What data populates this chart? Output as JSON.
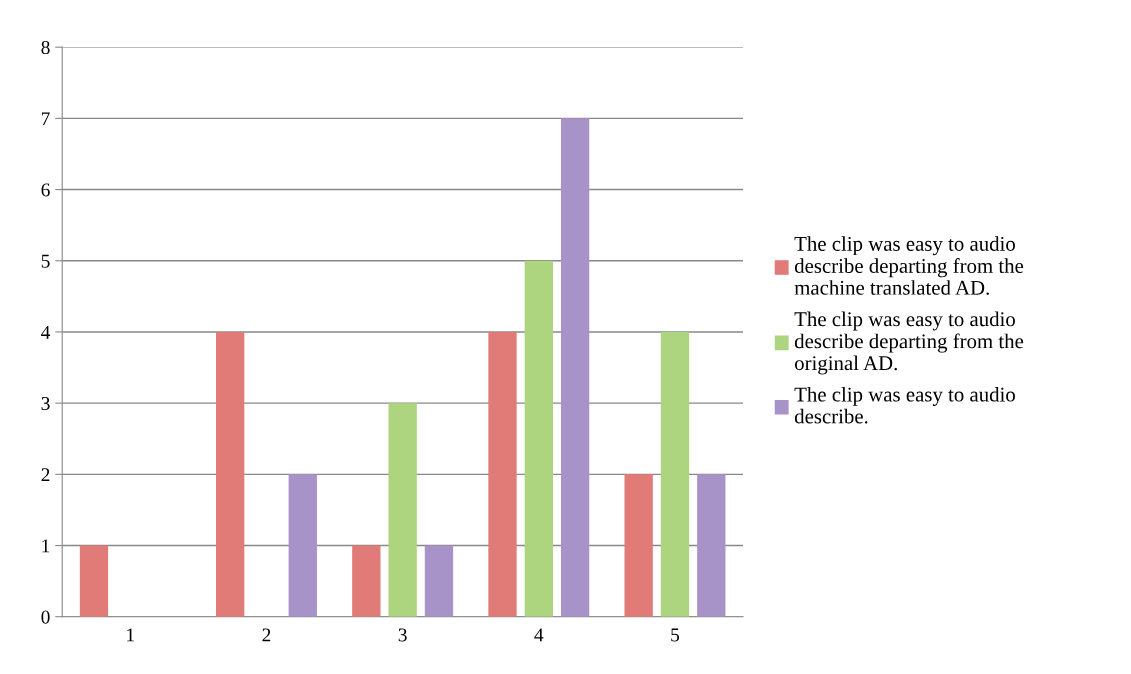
{
  "chart_data": {
    "type": "bar",
    "categories": [
      "1",
      "2",
      "3",
      "4",
      "5"
    ],
    "series": [
      {
        "name": "The clip was easy to audio\ndescribe departing from the\nmachine translated AD.",
        "color": "#e07b77",
        "values": [
          1,
          4,
          1,
          4,
          2
        ]
      },
      {
        "name": "The clip was easy to audio\ndescribe departing from the\noriginal AD.",
        "color": "#add47e",
        "values": [
          0,
          0,
          3,
          5,
          4
        ]
      },
      {
        "name": "The clip was easy to audio\ndescribe.",
        "color": "#a893c8",
        "values": [
          0,
          2,
          1,
          7,
          2
        ]
      }
    ],
    "ylim": [
      0,
      8
    ],
    "yticks": [
      0,
      1,
      2,
      3,
      4,
      5,
      6,
      7,
      8
    ],
    "grid": "y",
    "legend": "right"
  }
}
